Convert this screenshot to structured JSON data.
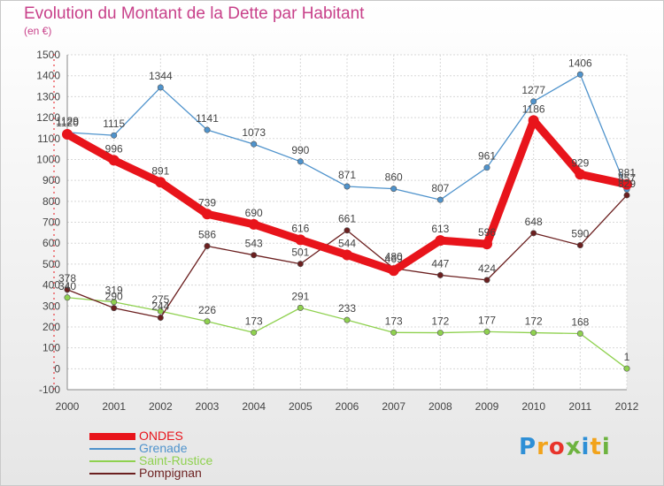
{
  "title": "Evolution du Montant de la Dette par Habitant",
  "subtitle": "(en €)",
  "logo": {
    "text": "Proxiti",
    "letters": [
      "P",
      "r",
      "o",
      "x",
      "i",
      "t",
      "i"
    ],
    "colors": [
      "#2e8fd6",
      "#f2a31b",
      "#e8342b",
      "#6db33f",
      "#2e8fd6",
      "#f2a31b",
      "#6db33f"
    ]
  },
  "chart_data": {
    "type": "line",
    "title": "Evolution du Montant de la Dette par Habitant",
    "ylabel": "(en €)",
    "x": [
      "2000",
      "2001",
      "2002",
      "2003",
      "2004",
      "2005",
      "2006",
      "2007",
      "2008",
      "2009",
      "2010",
      "2011",
      "2012"
    ],
    "ylim": [
      -100,
      1500
    ],
    "yticks": [
      -100,
      0,
      100,
      200,
      300,
      400,
      500,
      600,
      700,
      800,
      900,
      1000,
      1100,
      1200,
      1300,
      1400,
      1500
    ],
    "grid": true,
    "legend_position": "bottom-left",
    "series": [
      {
        "name": "ONDES",
        "color": "#e8141b",
        "values": [
          1120,
          996,
          891,
          739,
          690,
          616,
          544,
          469,
          613,
          596,
          1186,
          929,
          881
        ],
        "labels": [
          "1120",
          "996",
          "891",
          "739",
          "690",
          "616",
          "544",
          "469",
          "613",
          "596",
          "1186",
          "929",
          "881"
        ]
      },
      {
        "name": "Grenade",
        "color": "#4f93cc",
        "values": [
          1129,
          1115,
          1344,
          1141,
          1073,
          990,
          871,
          860,
          807,
          961,
          1277,
          1406,
          857
        ],
        "labels": [
          "1129",
          "1115",
          "1344",
          "1141",
          "1073",
          "990",
          "871",
          "860",
          "807",
          "961",
          "1277",
          "1406",
          "857"
        ]
      },
      {
        "name": "Saint-Rustice",
        "color": "#8fd14f",
        "values": [
          340,
          319,
          275,
          226,
          173,
          291,
          233,
          173,
          172,
          177,
          172,
          168,
          1
        ],
        "labels": [
          "340",
          "319",
          "275",
          "226",
          "173",
          "291",
          "233",
          "173",
          "172",
          "177",
          "172",
          "168",
          "1"
        ]
      },
      {
        "name": "Pompignan",
        "color": "#6b1f1f",
        "values": [
          378,
          290,
          244,
          586,
          543,
          501,
          661,
          480,
          447,
          424,
          648,
          590,
          829
        ],
        "labels": [
          "378",
          "290",
          "244",
          "586",
          "543",
          "501",
          "661",
          "480",
          "447",
          "424",
          "648",
          "590",
          "829"
        ]
      }
    ]
  }
}
